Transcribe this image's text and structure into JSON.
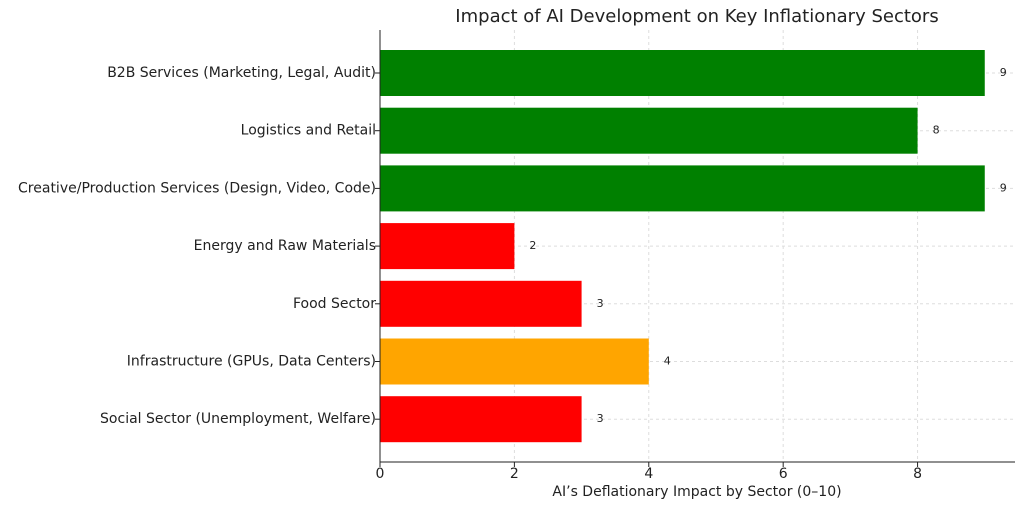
{
  "chart_data": {
    "type": "barh",
    "title": "Impact of AI Development on Key Inflationary Sectors",
    "xlabel": "AI’s Deflationary Impact by Sector (0–10)",
    "categories": [
      "B2B Services (Marketing, Legal, Audit)",
      "Logistics and Retail",
      "Creative/Production Services (Design, Video, Code)",
      "Energy and Raw Materials",
      "Food Sector",
      "Infrastructure (GPUs, Data Centers)",
      "Social Sector (Unemployment, Welfare)"
    ],
    "values": [
      9,
      8,
      9,
      2,
      3,
      4,
      3
    ],
    "colors": [
      "green",
      "green",
      "green",
      "red",
      "red",
      "orange",
      "red"
    ],
    "xlim": [
      0,
      9.45
    ],
    "xticks": [
      0,
      2,
      4,
      6,
      8
    ],
    "grid": true
  }
}
